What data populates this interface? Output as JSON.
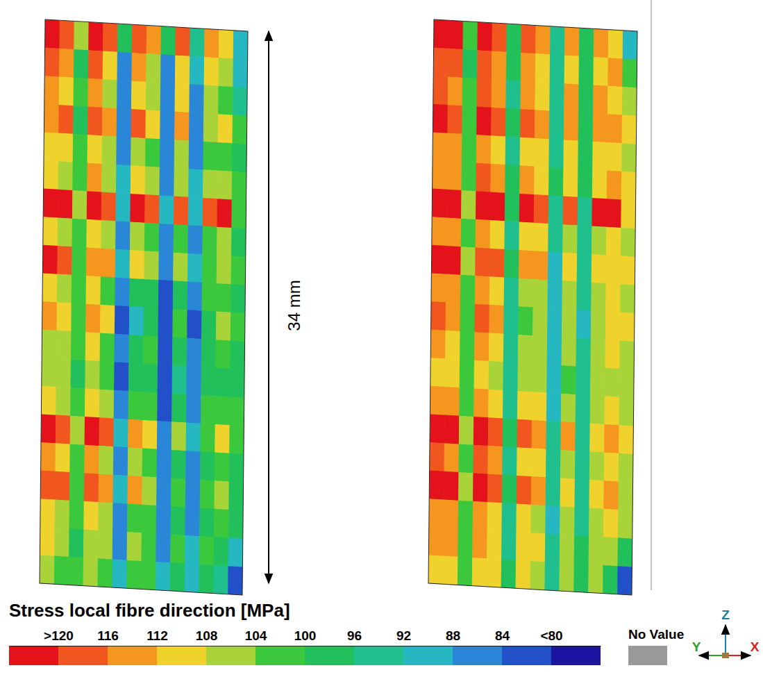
{
  "chart_data": {
    "type": "heatmap",
    "annotation": "34 mm",
    "panels": [
      {
        "cells": [
          [
            120,
            118,
            104,
            120,
            116,
            96,
            118,
            112,
            96,
            116,
            92,
            112,
            108,
            88
          ],
          [
            118,
            112,
            98,
            116,
            108,
            86,
            112,
            104,
            86,
            108,
            88,
            110,
            104,
            90
          ],
          [
            112,
            108,
            100,
            112,
            106,
            84,
            110,
            106,
            84,
            110,
            86,
            104,
            102,
            94
          ],
          [
            114,
            116,
            98,
            118,
            112,
            86,
            116,
            108,
            86,
            112,
            84,
            106,
            108,
            100
          ],
          [
            110,
            108,
            100,
            110,
            104,
            84,
            106,
            102,
            84,
            104,
            86,
            100,
            102,
            98
          ],
          [
            108,
            106,
            102,
            112,
            106,
            88,
            108,
            104,
            86,
            104,
            90,
            104,
            106,
            100
          ],
          [
            120,
            120,
            104,
            122,
            118,
            90,
            120,
            116,
            88,
            116,
            88,
            118,
            120,
            102
          ],
          [
            110,
            106,
            102,
            108,
            104,
            84,
            104,
            102,
            84,
            100,
            86,
            100,
            104,
            98
          ],
          [
            122,
            118,
            102,
            114,
            112,
            88,
            110,
            106,
            84,
            104,
            88,
            102,
            104,
            100
          ],
          [
            108,
            106,
            100,
            108,
            102,
            84,
            98,
            96,
            82,
            98,
            84,
            100,
            100,
            98
          ],
          [
            112,
            110,
            102,
            114,
            108,
            82,
            90,
            96,
            80,
            100,
            82,
            98,
            104,
            100
          ],
          [
            106,
            104,
            100,
            108,
            102,
            84,
            96,
            100,
            82,
            98,
            84,
            98,
            100,
            98
          ],
          [
            104,
            104,
            98,
            106,
            100,
            82,
            96,
            98,
            80,
            94,
            84,
            96,
            98,
            96
          ],
          [
            108,
            106,
            100,
            110,
            104,
            84,
            100,
            102,
            82,
            98,
            86,
            100,
            102,
            100
          ],
          [
            120,
            118,
            104,
            120,
            116,
            90,
            114,
            108,
            86,
            104,
            88,
            102,
            108,
            100
          ],
          [
            112,
            108,
            100,
            112,
            106,
            86,
            104,
            100,
            84,
            96,
            86,
            98,
            100,
            98
          ],
          [
            118,
            118,
            102,
            116,
            114,
            88,
            112,
            106,
            86,
            100,
            84,
            100,
            104,
            98
          ],
          [
            110,
            106,
            100,
            108,
            104,
            86,
            102,
            100,
            84,
            96,
            86,
            98,
            100,
            96
          ],
          [
            108,
            106,
            98,
            106,
            104,
            86,
            104,
            102,
            86,
            100,
            88,
            100,
            98,
            90
          ],
          [
            104,
            102,
            100,
            104,
            102,
            88,
            102,
            100,
            88,
            98,
            90,
            96,
            92,
            80
          ]
        ]
      },
      {
        "cells": [
          [
            120,
            120,
            100,
            120,
            118,
            96,
            116,
            112,
            94,
            114,
            98,
            112,
            110,
            90
          ],
          [
            118,
            116,
            98,
            118,
            114,
            96,
            114,
            108,
            92,
            110,
            96,
            110,
            112,
            100
          ],
          [
            116,
            114,
            100,
            116,
            112,
            94,
            112,
            110,
            94,
            112,
            96,
            112,
            110,
            104
          ],
          [
            120,
            118,
            100,
            120,
            116,
            96,
            116,
            112,
            94,
            114,
            98,
            114,
            114,
            108
          ],
          [
            114,
            112,
            100,
            114,
            110,
            94,
            110,
            108,
            92,
            108,
            96,
            108,
            110,
            106
          ],
          [
            114,
            114,
            102,
            116,
            112,
            98,
            112,
            110,
            96,
            110,
            98,
            110,
            112,
            108
          ],
          [
            122,
            122,
            104,
            122,
            120,
            96,
            120,
            118,
            92,
            118,
            94,
            120,
            120,
            110
          ],
          [
            114,
            112,
            102,
            114,
            110,
            94,
            110,
            108,
            92,
            106,
            94,
            106,
            110,
            106
          ],
          [
            122,
            120,
            104,
            118,
            116,
            96,
            114,
            112,
            90,
            108,
            94,
            108,
            110,
            108
          ],
          [
            114,
            112,
            102,
            112,
            108,
            94,
            104,
            104,
            90,
            104,
            92,
            106,
            108,
            106
          ],
          [
            116,
            114,
            102,
            118,
            112,
            92,
            100,
            104,
            88,
            106,
            90,
            104,
            110,
            108
          ],
          [
            112,
            110,
            102,
            112,
            108,
            94,
            104,
            106,
            90,
            104,
            92,
            104,
            108,
            106
          ],
          [
            110,
            110,
            100,
            110,
            106,
            92,
            104,
            104,
            88,
            102,
            92,
            104,
            106,
            104
          ],
          [
            114,
            112,
            102,
            114,
            110,
            94,
            108,
            108,
            90,
            104,
            94,
            106,
            108,
            106
          ],
          [
            122,
            120,
            104,
            122,
            118,
            96,
            118,
            114,
            92,
            112,
            94,
            110,
            114,
            108
          ],
          [
            116,
            114,
            102,
            116,
            112,
            94,
            110,
            108,
            92,
            104,
            94,
            106,
            108,
            106
          ],
          [
            122,
            120,
            104,
            120,
            118,
            96,
            116,
            112,
            92,
            108,
            92,
            108,
            112,
            106
          ],
          [
            114,
            112,
            102,
            114,
            110,
            94,
            108,
            106,
            90,
            104,
            94,
            106,
            108,
            104
          ],
          [
            112,
            112,
            100,
            112,
            110,
            94,
            110,
            108,
            92,
            106,
            96,
            106,
            106,
            98
          ],
          [
            110,
            108,
            100,
            110,
            108,
            96,
            108,
            106,
            94,
            104,
            96,
            104,
            98,
            82
          ]
        ]
      }
    ],
    "colorbar": {
      "title": "Stress local fibre direction [MPa]",
      "lim": [
        124,
        76
      ],
      "ticks": [
        {
          "value": 120,
          "label": ">120"
        },
        116,
        112,
        108,
        104,
        100,
        96,
        92,
        88,
        84,
        {
          "value": 80,
          "label": "<80"
        }
      ],
      "colors": [
        "#e3121b",
        "#f0561e",
        "#f5961f",
        "#f0d22c",
        "#a8d43a",
        "#3cc83c",
        "#22c05a",
        "#1fbf8e",
        "#25b8c0",
        "#2a86d6",
        "#2150c8",
        "#1a14a0"
      ],
      "no_value_label": "No Value",
      "no_value_color": "#999999"
    },
    "axis_labels": [
      "Z",
      "Y",
      "X"
    ]
  }
}
